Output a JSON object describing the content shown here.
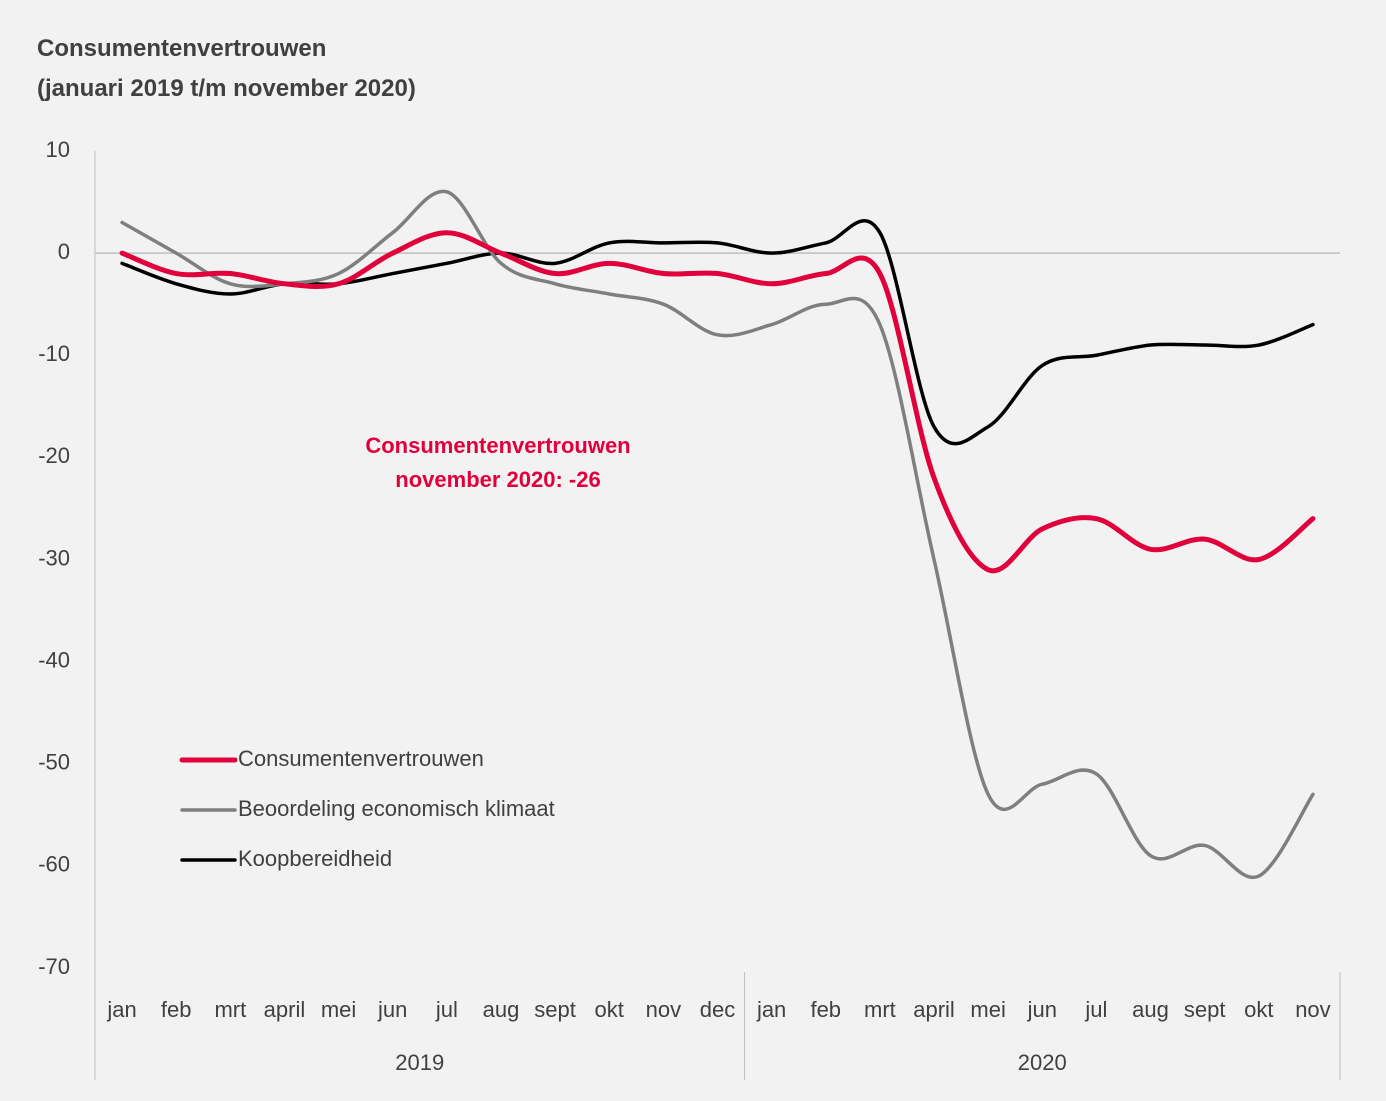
{
  "chart_data": {
    "type": "line",
    "title": [
      "Consumentenvertrouwen",
      "(januari 2019 t/m november 2020)"
    ],
    "category_groups": [
      {
        "label": "2019",
        "categories": [
          "jan",
          "feb",
          "mrt",
          "april",
          "mei",
          "jun",
          "jul",
          "aug",
          "sept",
          "okt",
          "nov",
          "dec"
        ]
      },
      {
        "label": "2020",
        "categories": [
          "jan",
          "feb",
          "mrt",
          "april",
          "mei",
          "jun",
          "jul",
          "aug",
          "sept",
          "okt",
          "nov"
        ]
      }
    ],
    "series": [
      {
        "name": "Consumentenvertrouwen",
        "color": "#e0003c",
        "width": 5,
        "values": [
          0,
          -2,
          -2,
          -3,
          -3,
          0,
          2,
          0,
          -2,
          -1,
          -2,
          -2,
          -3,
          -2,
          -2,
          -22,
          -31,
          -27,
          -26,
          -29,
          -28,
          -30,
          -26
        ]
      },
      {
        "name": "Beoordeling economisch klimaat",
        "color": "#7f7f7f",
        "width": 3.5,
        "values": [
          3,
          0,
          -3,
          -3,
          -2,
          2,
          6,
          -1,
          -3,
          -4,
          -5,
          -8,
          -7,
          -5,
          -7,
          -30,
          -53,
          -52,
          -51,
          -59,
          -58,
          -61,
          -53
        ]
      },
      {
        "name": "Koopbereidheid",
        "color": "#000000",
        "width": 3.5,
        "values": [
          -1,
          -3,
          -4,
          -3,
          -3,
          -2,
          -1,
          0,
          -1,
          1,
          1,
          1,
          0,
          1,
          2,
          -17,
          -17,
          -11,
          -10,
          -9,
          -9,
          -9,
          -7
        ]
      }
    ],
    "ylim": [
      -70,
      10
    ],
    "yticks": [
      10,
      0,
      -10,
      -20,
      -30,
      -40,
      -50,
      -60,
      -70
    ],
    "grid": false,
    "legend": "lower left",
    "annotation": {
      "lines": [
        "Consumentenvertrouwen",
        "november 2020: -26"
      ],
      "color": "#e0003c"
    }
  }
}
